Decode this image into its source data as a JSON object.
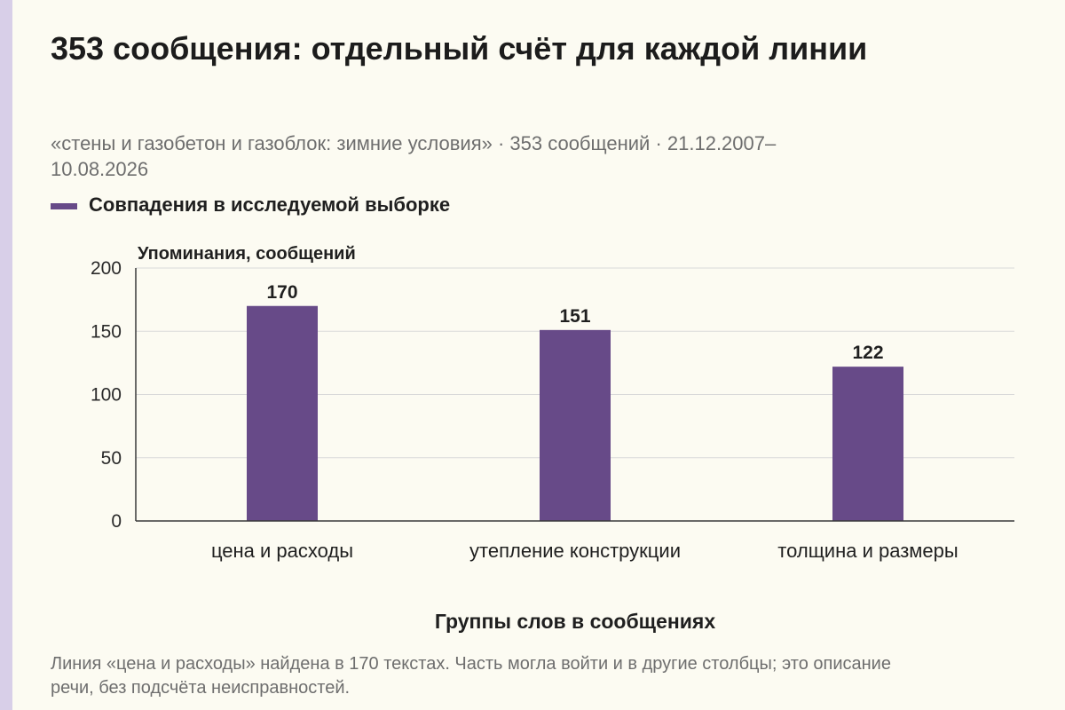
{
  "colors": {
    "background": "#fcfbf2",
    "accent_bar": "#d8cfe8",
    "bar": "#674a88",
    "grid": "#d9d9d9",
    "axis": "#3a3a3a"
  },
  "header": {
    "title": "353 сообщения: отдельный счёт для каждой линии",
    "subtitle": "«стены и газобетон и газоблок: зимние условия» · 353 сообщений · 21.12.2007–10.08.2026"
  },
  "legend": {
    "label": "Совпадения в исследуемой выборке"
  },
  "footnote": "Линия «цена и расходы» найдена в 170 текстах. Часть могла войти и в другие столбцы; это описание речи, без подсчёта неисправностей.",
  "chart_data": {
    "type": "bar",
    "categories": [
      "цена и расходы",
      "утепление конструкции",
      "толщина и размеры"
    ],
    "series": [
      {
        "name": "Совпадения в исследуемой выборке",
        "values": [
          170,
          151,
          122
        ]
      }
    ],
    "ylabel": "Упоминания, сообщений",
    "xlabel": "Группы слов в сообщениях",
    "ylim": [
      0,
      200
    ],
    "yticks": [
      0,
      50,
      100,
      150,
      200
    ],
    "grid": true,
    "legend_position": "top-left",
    "data_labels": true
  }
}
